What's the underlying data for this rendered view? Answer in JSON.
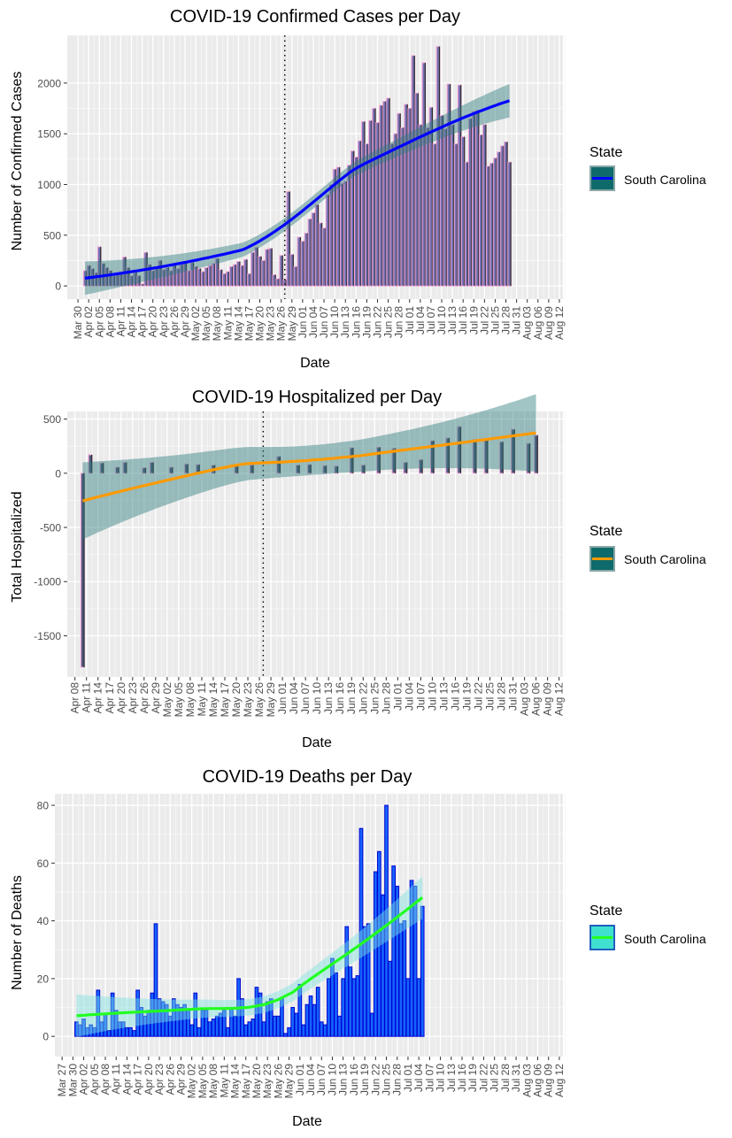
{
  "page": {
    "legend_title": "State",
    "legend_label": "South Carolina"
  },
  "chart_data": [
    {
      "type": "bar",
      "title": "COVID-19 Confirmed Cases per Day",
      "xlabel": "Date",
      "ylabel": "Number of Confirmed Cases",
      "y_ticks": [
        0,
        500,
        1000,
        1500,
        2000
      ],
      "ylim": [
        -130,
        2470
      ],
      "x_range": [
        "2020-03-27",
        "2020-08-13"
      ],
      "x_tick_labels": [
        "Mar 30",
        "Apr 02",
        "Apr 05",
        "Apr 08",
        "Apr 11",
        "Apr 14",
        "Apr 17",
        "Apr 20",
        "Apr 23",
        "Apr 26",
        "Apr 29",
        "May 02",
        "May 05",
        "May 08",
        "May 11",
        "May 14",
        "May 17",
        "May 20",
        "May 23",
        "May 26",
        "May 29",
        "Jun 01",
        "Jun 04",
        "Jun 07",
        "Jun 10",
        "Jun 13",
        "Jun 16",
        "Jun 19",
        "Jun 22",
        "Jun 25",
        "Jun 28",
        "Jul 01",
        "Jul 04",
        "Jul 07",
        "Jul 10",
        "Jul 13",
        "Jul 16",
        "Jul 19",
        "Jul 22",
        "Jul 25",
        "Jul 28",
        "Jul 31",
        "Aug 03",
        "Aug 06",
        "Aug 09",
        "Aug 12"
      ],
      "vline_date": "2020-05-27",
      "series_name": "South Carolina",
      "bar_fill": "#7570b3",
      "bar_outline": "#f4a6d7",
      "edge_color": "#2b2b2b",
      "smooth_color": "#0000ff",
      "ribbon_color": "#2e7d7d",
      "legend_fill": "#0f6b6b",
      "start_date": "2020-04-01",
      "values": [
        150,
        200,
        170,
        130,
        385,
        220,
        180,
        150,
        100,
        130,
        140,
        285,
        180,
        100,
        130,
        100,
        20,
        330,
        210,
        150,
        190,
        250,
        160,
        180,
        150,
        200,
        170,
        210,
        240,
        150,
        230,
        190,
        170,
        140,
        180,
        200,
        220,
        270,
        160,
        120,
        140,
        190,
        210,
        240,
        200,
        260,
        120,
        330,
        380,
        290,
        250,
        360,
        370,
        110,
        70,
        300,
        60,
        930,
        310,
        190,
        480,
        440,
        520,
        660,
        720,
        800,
        620,
        570,
        900,
        1000,
        1150,
        1170,
        1010,
        1030,
        1190,
        1330,
        1270,
        1430,
        1620,
        1400,
        1630,
        1750,
        1610,
        1780,
        1820,
        1850,
        1400,
        1500,
        1700,
        1560,
        1790,
        1750,
        2270,
        1900,
        1590,
        2200,
        1560,
        1760,
        1400,
        2360,
        1680,
        1550,
        1990,
        1590,
        1400,
        1980,
        1470,
        1220,
        1650,
        1720,
        1730,
        1490,
        1590,
        1180,
        1210,
        1260,
        1320,
        1380,
        1420,
        1220
      ]
    },
    {
      "type": "bar",
      "title": "COVID-19 Hospitalized per Day",
      "xlabel": "Date",
      "ylabel": "Total Hospitalized",
      "y_ticks": [
        -1500,
        -1000,
        -500,
        0,
        500
      ],
      "ylim": [
        -1880,
        570
      ],
      "x_range": [
        "2020-04-06",
        "2020-08-13"
      ],
      "x_tick_labels": [
        "Apr 08",
        "Apr 11",
        "Apr 14",
        "Apr 17",
        "Apr 20",
        "Apr 23",
        "Apr 26",
        "Apr 29",
        "May 02",
        "May 05",
        "May 08",
        "May 11",
        "May 14",
        "May 17",
        "May 20",
        "May 23",
        "May 26",
        "May 29",
        "Jun 01",
        "Jun 04",
        "Jun 07",
        "Jun 10",
        "Jun 13",
        "Jun 16",
        "Jun 19",
        "Jun 22",
        "Jun 25",
        "Jun 28",
        "Jul 01",
        "Jul 04",
        "Jul 07",
        "Jul 10",
        "Jul 13",
        "Jul 16",
        "Jul 19",
        "Jul 22",
        "Jul 25",
        "Jul 28",
        "Jul 31",
        "Aug 03",
        "Aug 06",
        "Aug 09",
        "Aug 12"
      ],
      "vline_date": "2020-05-27",
      "series_name": "South Carolina",
      "bar_fill": "#4f5a80",
      "bar_outline": "#f4a6d7",
      "edge_color": "#2b2b2b",
      "smooth_color": "#ff9a00",
      "ribbon_color": "#2e7d7d",
      "legend_fill": "#0f6b6b",
      "points": [
        [
          "2020-04-10",
          -1790
        ],
        [
          "2020-04-12",
          170
        ],
        [
          "2020-04-15",
          95
        ],
        [
          "2020-04-19",
          55
        ],
        [
          "2020-04-21",
          100
        ],
        [
          "2020-04-26",
          50
        ],
        [
          "2020-04-28",
          100
        ],
        [
          "2020-05-03",
          55
        ],
        [
          "2020-05-07",
          85
        ],
        [
          "2020-05-10",
          80
        ],
        [
          "2020-05-14",
          75
        ],
        [
          "2020-05-20",
          65
        ],
        [
          "2020-05-24",
          75
        ],
        [
          "2020-05-31",
          155
        ],
        [
          "2020-06-05",
          75
        ],
        [
          "2020-06-08",
          80
        ],
        [
          "2020-06-12",
          70
        ],
        [
          "2020-06-15",
          65
        ],
        [
          "2020-06-19",
          235
        ],
        [
          "2020-06-22",
          75
        ],
        [
          "2020-06-26",
          240
        ],
        [
          "2020-06-30",
          230
        ],
        [
          "2020-07-03",
          100
        ],
        [
          "2020-07-07",
          125
        ],
        [
          "2020-07-10",
          300
        ],
        [
          "2020-07-14",
          325
        ],
        [
          "2020-07-17",
          430
        ],
        [
          "2020-07-21",
          310
        ],
        [
          "2020-07-24",
          320
        ],
        [
          "2020-07-28",
          290
        ],
        [
          "2020-07-31",
          405
        ],
        [
          "2020-08-04",
          275
        ],
        [
          "2020-08-06",
          350
        ]
      ]
    },
    {
      "type": "bar",
      "title": "COVID-19 Deaths per Day",
      "xlabel": "Date",
      "ylabel": "Number of Deaths",
      "y_ticks": [
        0,
        20,
        40,
        60,
        80
      ],
      "ylim": [
        -7,
        84
      ],
      "x_range": [
        "2020-03-25",
        "2020-08-13"
      ],
      "x_tick_labels": [
        "Mar 27",
        "Mar 30",
        "Apr 02",
        "Apr 05",
        "Apr 08",
        "Apr 11",
        "Apr 14",
        "Apr 17",
        "Apr 20",
        "Apr 23",
        "Apr 26",
        "Apr 29",
        "May 02",
        "May 05",
        "May 08",
        "May 11",
        "May 14",
        "May 17",
        "May 20",
        "May 23",
        "May 26",
        "May 29",
        "Jun 01",
        "Jun 04",
        "Jun 07",
        "Jun 10",
        "Jun 13",
        "Jun 16",
        "Jun 19",
        "Jun 22",
        "Jun 25",
        "Jun 28",
        "Jul 01",
        "Jul 04",
        "Jul 07",
        "Jul 10",
        "Jul 13",
        "Jul 16",
        "Jul 19",
        "Jul 22",
        "Jul 25",
        "Jul 28",
        "Jul 31",
        "Aug 03",
        "Aug 06",
        "Aug 09",
        "Aug 12"
      ],
      "series_name": "South Carolina",
      "bar_fill": "#1565ff",
      "bar_outline": "#0000d0",
      "smooth_color": "#22ff22",
      "ribbon_color": "#7fe3df",
      "legend_fill": "#40e0d0",
      "legend_border": "#1f5fbf",
      "start_date": "2020-03-31",
      "values": [
        5,
        4,
        6,
        3,
        4,
        3,
        16,
        5,
        8,
        2,
        15,
        9,
        5,
        5,
        3,
        3,
        2,
        16,
        10,
        7,
        9,
        15,
        39,
        13,
        12,
        11,
        7,
        13,
        11,
        10,
        11,
        9,
        4,
        15,
        3,
        9,
        9,
        5,
        6,
        7,
        8,
        9,
        3,
        10,
        7,
        20,
        13,
        4,
        5,
        6,
        17,
        15,
        5,
        12,
        13,
        7,
        7,
        13,
        1,
        3,
        10,
        8,
        18,
        4,
        11,
        14,
        11,
        17,
        5,
        4,
        20,
        27,
        22,
        7,
        20,
        38,
        24,
        20,
        21,
        72,
        38,
        39,
        8,
        57,
        64,
        49,
        80,
        26,
        59,
        52,
        39,
        40,
        20,
        54,
        52,
        20,
        45
      ]
    }
  ]
}
